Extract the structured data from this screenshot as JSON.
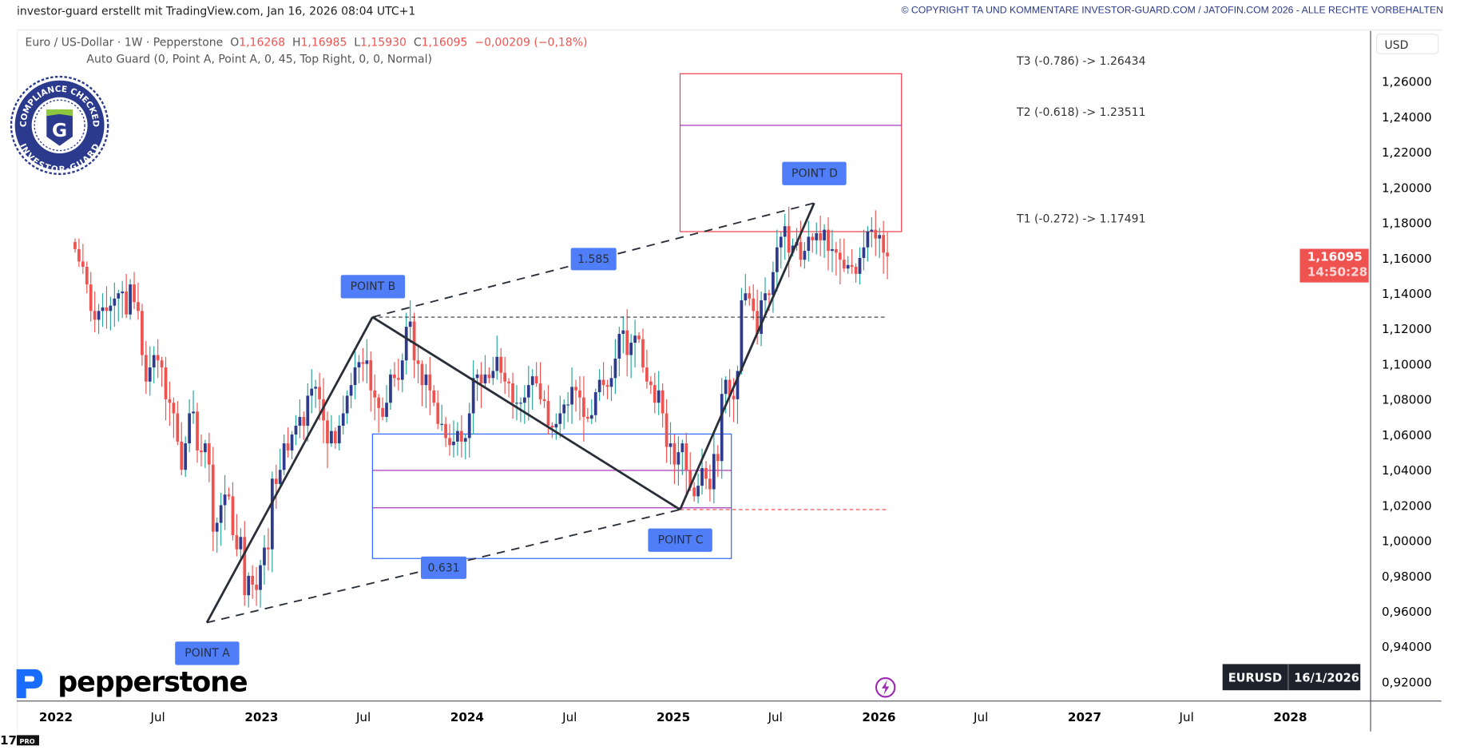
{
  "header": {
    "credit": "investor-guard erstellt mit TradingView.com, Jan 16, 2026 08:04 UTC+1",
    "copyright": "© COPYRIGHT TA UND KOMMENTARE INVESTOR-GUARD.COM / JATOFIN.COM 2026 - ALLE RECHTE VORBEHALTEN"
  },
  "legend": {
    "symbol": "Euro / US-Dollar · 1W · Pepperstone",
    "o_label": "O",
    "o": "1,16268",
    "h_label": "H",
    "h": "1,16985",
    "l_label": "L",
    "l": "1,15930",
    "c_label": "C",
    "c": "1,16095",
    "change": "−0,00209 (−0,18%)",
    "indicator": "Auto Guard (0, Point A, Point A, 0, 45, Top Right, 0, 0, Normal)"
  },
  "price_axis": {
    "currency": "USD",
    "current_price": "1,16095",
    "countdown": "14:50:28"
  },
  "symbol_badge": {
    "symbol": "EURUSD",
    "date": "16/1/2026"
  },
  "logos": {
    "badge_text_top": "COMPLIANCE CHECKED",
    "badge_text_bottom": "INVESTOR-GUARD",
    "broker": "pepperstone",
    "platform": "TV PRO"
  },
  "colors": {
    "up_body": "#2e3a8c",
    "up_wick": "#26a69a",
    "down": "#ef5350",
    "label_bg": "#4f7ef8",
    "box_blue": "#2962ff",
    "box_red": "#f23645",
    "mid_line": "#9c27b0",
    "accent": "#2b3a8c"
  },
  "icons": {
    "alert": "lightning-icon"
  },
  "chart_data": {
    "type": "candlestick",
    "title": "Euro / US-Dollar · 1W · Pepperstone",
    "interval": "1W",
    "last_bar_date": "2026-01-16",
    "ylim": [
      0.91,
      1.27
    ],
    "y_ticks": [
      "1,26000",
      "1,24000",
      "1,22000",
      "1,20000",
      "1,18000",
      "1,16000",
      "1,14000",
      "1,12000",
      "1,10000",
      "1,08000",
      "1,06000",
      "1,04000",
      "1,02000",
      "1,00000",
      "0,98000",
      "0,96000",
      "0,94000",
      "0,92000"
    ],
    "y_tick_values": [
      1.26,
      1.24,
      1.22,
      1.2,
      1.18,
      1.16,
      1.14,
      1.12,
      1.1,
      1.08,
      1.06,
      1.04,
      1.02,
      1.0,
      0.98,
      0.96,
      0.94,
      0.92
    ],
    "x_ticks": [
      {
        "label": "2022",
        "date": "2022-01-01"
      },
      {
        "label": "Jul",
        "date": "2022-07-01"
      },
      {
        "label": "2023",
        "date": "2023-01-01"
      },
      {
        "label": "Jul",
        "date": "2023-07-01"
      },
      {
        "label": "2024",
        "date": "2024-01-01"
      },
      {
        "label": "Jul",
        "date": "2024-07-01"
      },
      {
        "label": "2025",
        "date": "2025-01-01"
      },
      {
        "label": "Jul",
        "date": "2025-07-01"
      },
      {
        "label": "2026",
        "date": "2026-01-01"
      },
      {
        "label": "Jul",
        "date": "2026-07-01"
      },
      {
        "label": "2027",
        "date": "2027-01-01"
      },
      {
        "label": "Jul",
        "date": "2027-07-01"
      },
      {
        "label": "2028",
        "date": "2028-01-01"
      }
    ],
    "weekly_closes": [
      1.165,
      1.158,
      1.155,
      1.145,
      1.13,
      1.125,
      1.13,
      1.132,
      1.13,
      1.133,
      1.137,
      1.14,
      1.141,
      1.128,
      1.145,
      1.135,
      1.13,
      1.105,
      1.09,
      1.098,
      1.105,
      1.102,
      1.098,
      1.08,
      1.078,
      1.072,
      1.056,
      1.04,
      1.055,
      1.072,
      1.073,
      1.051,
      1.05,
      1.055,
      1.043,
      1.005,
      1.01,
      1.02,
      1.026,
      1.025,
      1.003,
      0.995,
      1.002,
      0.969,
      0.98,
      0.975,
      0.972,
      0.986,
      0.996,
      0.995,
      1.035,
      1.032,
      1.04,
      1.055,
      1.051,
      1.06,
      1.065,
      1.07,
      1.065,
      1.082,
      1.086,
      1.087,
      1.08,
      1.068,
      1.055,
      1.062,
      1.055,
      1.065,
      1.072,
      1.082,
      1.088,
      1.098,
      1.101,
      1.1,
      1.102,
      1.085,
      1.081,
      1.075,
      1.07,
      1.078,
      1.094,
      1.092,
      1.091,
      1.102,
      1.121,
      1.124,
      1.102,
      1.1,
      1.088,
      1.094,
      1.085,
      1.078,
      1.066,
      1.066,
      1.058,
      1.054,
      1.056,
      1.062,
      1.056,
      1.058,
      1.072,
      1.092,
      1.094,
      1.089,
      1.094,
      1.092,
      1.096,
      1.104,
      1.095,
      1.09,
      1.089,
      1.078,
      1.078,
      1.078,
      1.081,
      1.088,
      1.093,
      1.089,
      1.08,
      1.079,
      1.065,
      1.064,
      1.066,
      1.072,
      1.077,
      1.077,
      1.087,
      1.085,
      1.081,
      1.07,
      1.069,
      1.071,
      1.084,
      1.091,
      1.088,
      1.087,
      1.092,
      1.103,
      1.117,
      1.119,
      1.105,
      1.112,
      1.116,
      1.114,
      1.098,
      1.09,
      1.088,
      1.078,
      1.085,
      1.072,
      1.053,
      1.055,
      1.043,
      1.05,
      1.055,
      1.04,
      1.03,
      1.025,
      1.031,
      1.041,
      1.035,
      1.029,
      1.049,
      1.045,
      1.083,
      1.091,
      1.082,
      1.08,
      1.096,
      1.136,
      1.14,
      1.137,
      1.13,
      1.117,
      1.136,
      1.14,
      1.139,
      1.152,
      1.166,
      1.172,
      1.178,
      1.163,
      1.167,
      1.169,
      1.159,
      1.164,
      1.172,
      1.17,
      1.174,
      1.17,
      1.176,
      1.164,
      1.165,
      1.163,
      1.159,
      1.154,
      1.156,
      1.155,
      1.151,
      1.16,
      1.166,
      1.175,
      1.176,
      1.171,
      1.173,
      1.163,
      1.16095
    ]
  },
  "pattern": {
    "points": [
      {
        "label": "POINT A",
        "date": "2022-09-26",
        "price": 0.9535
      },
      {
        "label": "POINT B",
        "date": "2023-07-17",
        "price": 1.1265
      },
      {
        "label": "POINT C",
        "date": "2025-01-13",
        "price": 1.0175
      },
      {
        "label": "POINT D",
        "date": "2025-09-08",
        "price": 1.1911
      }
    ],
    "ratio_ac": "0.631",
    "ratio_bd": "1.585",
    "retrace_box": {
      "from_date": "2023-07-17",
      "to_date": "2025-04-14",
      "top": 1.0603,
      "bottom": 0.9898,
      "mid_lines": [
        1.0397,
        1.0185
      ]
    },
    "target_box": {
      "from_date": "2025-01-13",
      "to_date": "2026-02-10",
      "top": 1.26434,
      "bottom": 1.17491,
      "mid_line": 1.23511
    },
    "targets": [
      {
        "text": "T3 (-0.786) -> 1.26434",
        "price": 1.26434
      },
      {
        "text": "T2 (-0.618) -> 1.23511",
        "price": 1.23511
      },
      {
        "text": "T1 (-0.272) -> 1.17491",
        "price": 1.17491
      }
    ],
    "extension_end_date": "2026-01-16"
  }
}
